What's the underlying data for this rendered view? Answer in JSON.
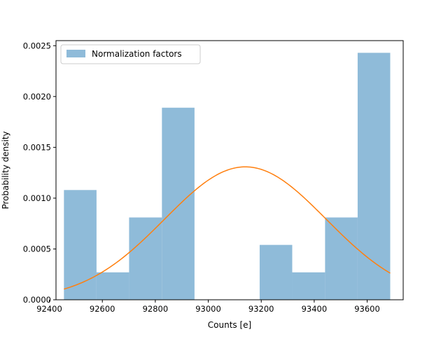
{
  "chart_data": {
    "type": "bar",
    "title": "",
    "xlabel": "Counts [e]",
    "ylabel": "Probability density",
    "xlim": [
      92425,
      93736
    ],
    "ylim": [
      0,
      0.00255
    ],
    "grid": false,
    "legend_position": "top-left",
    "x_ticks": [
      {
        "value": 92400,
        "label": "92400"
      },
      {
        "value": 92600,
        "label": "92600"
      },
      {
        "value": 92800,
        "label": "92800"
      },
      {
        "value": 93000,
        "label": "93000"
      },
      {
        "value": 93200,
        "label": "93200"
      },
      {
        "value": 93400,
        "label": "93400"
      },
      {
        "value": 93600,
        "label": "93600"
      }
    ],
    "y_ticks": [
      {
        "value": 0,
        "label": "0.0000"
      },
      {
        "value": 0.0005,
        "label": "0.0005"
      },
      {
        "value": 0.001,
        "label": "0.0010"
      },
      {
        "value": 0.0015,
        "label": "0.0015"
      },
      {
        "value": 0.002,
        "label": "0.0020"
      },
      {
        "value": 0.0025,
        "label": "0.0025"
      }
    ],
    "series": [
      {
        "name": "Normalization factors",
        "kind": "histogram",
        "color": "#8fbbd9",
        "bin_edges": [
          92455,
          92578,
          92701,
          92825,
          92948,
          93071,
          93194,
          93317,
          93441,
          93564,
          93687
        ],
        "values": [
          0.00108,
          0.00027,
          0.00081,
          0.00189,
          0.0,
          0.0,
          0.00054,
          0.00027,
          0.00081,
          0.00243
        ]
      },
      {
        "kind": "line",
        "color": "#ff7f0e",
        "mean": 93140,
        "std": 305,
        "x_range": [
          92455,
          93687
        ]
      }
    ]
  }
}
